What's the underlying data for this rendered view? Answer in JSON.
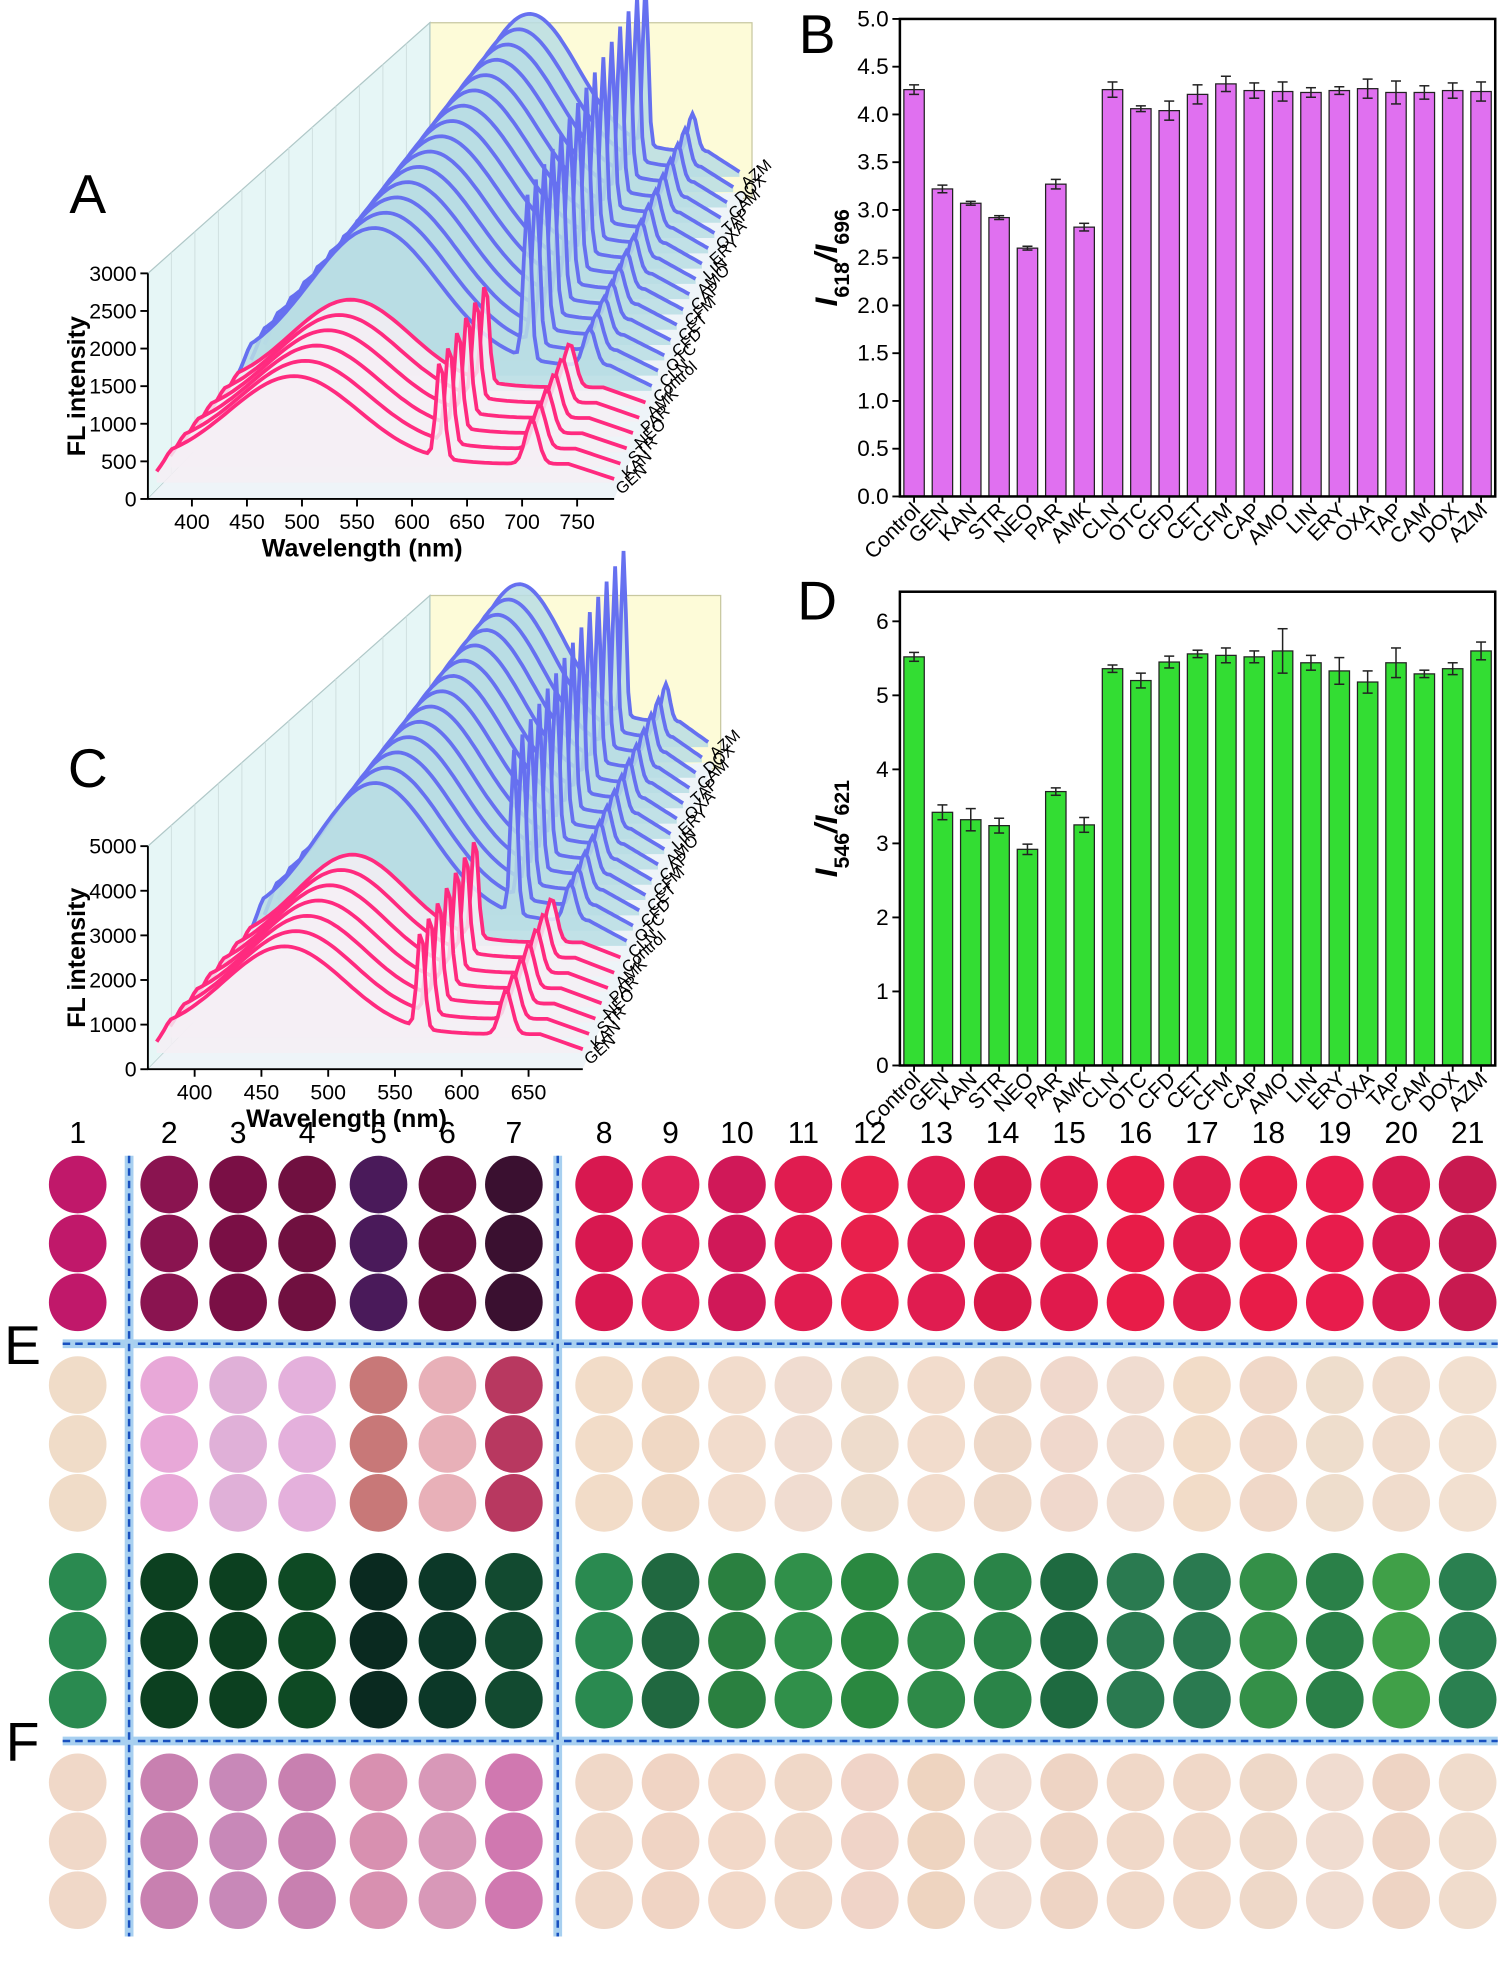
{
  "chart_data": [
    {
      "type": "waterfall",
      "panel": "A",
      "xlabel": "Wavelength (nm)",
      "ylabel": "FL intensity",
      "xlim": [
        360,
        795
      ],
      "xticks": [
        400,
        450,
        500,
        550,
        600,
        650,
        700,
        750
      ],
      "ylim": [
        0,
        3000
      ],
      "yticks": [
        0,
        500,
        1000,
        1500,
        2000,
        2500,
        3000
      ],
      "series": [
        {
          "name": "GEN",
          "color": "#ff2a7f"
        },
        {
          "name": "KAN",
          "color": "#ff2a7f"
        },
        {
          "name": "STR",
          "color": "#ff2a7f"
        },
        {
          "name": "NEO",
          "color": "#ff2a7f"
        },
        {
          "name": "PAR",
          "color": "#ff2a7f"
        },
        {
          "name": "AMK",
          "color": "#ff2a7f"
        },
        {
          "name": "Control",
          "color": "#6670f0"
        },
        {
          "name": "CLN",
          "color": "#6670f0"
        },
        {
          "name": "OTC",
          "color": "#6670f0"
        },
        {
          "name": "CFD",
          "color": "#6670f0"
        },
        {
          "name": "CET",
          "color": "#6670f0"
        },
        {
          "name": "CFM",
          "color": "#6670f0"
        },
        {
          "name": "CAP",
          "color": "#6670f0"
        },
        {
          "name": "AMO",
          "color": "#6670f0"
        },
        {
          "name": "LIN",
          "color": "#6670f0"
        },
        {
          "name": "ERY",
          "color": "#6670f0"
        },
        {
          "name": "OXA",
          "color": "#6670f0"
        },
        {
          "name": "TAP",
          "color": "#6670f0"
        },
        {
          "name": "CAM",
          "color": "#6670f0"
        },
        {
          "name": "DOX",
          "color": "#6670f0"
        },
        {
          "name": "AZM",
          "color": "#6670f0"
        }
      ]
    },
    {
      "type": "bar",
      "panel": "B",
      "color": "#e070f0",
      "ylabel": [
        {
          "text": "I"
        },
        {
          "sub": "618"
        },
        {
          "text": "/I"
        },
        {
          "sub": "696"
        }
      ],
      "categories": [
        "Control",
        "GEN",
        "KAN",
        "STR",
        "NEO",
        "PAR",
        "AMK",
        "CLN",
        "OTC",
        "CFD",
        "CET",
        "CFM",
        "CAP",
        "AMO",
        "LIN",
        "ERY",
        "OXA",
        "TAP",
        "CAM",
        "DOX",
        "AZM"
      ],
      "values": [
        4.26,
        3.22,
        3.07,
        2.92,
        2.6,
        3.27,
        2.82,
        4.26,
        4.06,
        4.04,
        4.21,
        4.32,
        4.25,
        4.24,
        4.23,
        4.25,
        4.27,
        4.23,
        4.23,
        4.25,
        4.24
      ],
      "errors": [
        0.05,
        0.04,
        0.02,
        0.02,
        0.02,
        0.05,
        0.04,
        0.08,
        0.03,
        0.1,
        0.1,
        0.08,
        0.08,
        0.1,
        0.05,
        0.04,
        0.1,
        0.12,
        0.07,
        0.08,
        0.1
      ],
      "ylim": [
        0,
        5
      ],
      "yticks": [
        {
          "value": 0,
          "label": "0.0"
        },
        0.5,
        {
          "value": 1,
          "label": "1.0"
        },
        1.5,
        {
          "value": 2,
          "label": "2.0"
        },
        2.5,
        {
          "value": 3,
          "label": "3.0"
        },
        3.5,
        {
          "value": 4,
          "label": "4.0"
        },
        4.5,
        {
          "value": 5,
          "label": "5.0"
        }
      ]
    },
    {
      "type": "waterfall",
      "panel": "C",
      "xlabel": "Wavelength (nm)",
      "ylabel": "FL intensity",
      "xlim": [
        365,
        700
      ],
      "xticks": [
        400,
        450,
        500,
        550,
        600,
        650
      ],
      "ylim": [
        0,
        5000
      ],
      "yticks": [
        0,
        1000,
        2000,
        3000,
        4000,
        5000
      ],
      "series": [
        {
          "name": "GEN",
          "color": "#ff2a7f"
        },
        {
          "name": "KAN",
          "color": "#ff2a7f"
        },
        {
          "name": "STR",
          "color": "#ff2a7f"
        },
        {
          "name": "NEO",
          "color": "#ff2a7f"
        },
        {
          "name": "PAR",
          "color": "#ff2a7f"
        },
        {
          "name": "AMK",
          "color": "#ff2a7f"
        },
        {
          "name": "Control",
          "color": "#ff2a7f"
        },
        {
          "name": "CLN",
          "color": "#6670f0"
        },
        {
          "name": "OTC",
          "color": "#6670f0"
        },
        {
          "name": "CFD",
          "color": "#6670f0"
        },
        {
          "name": "CET",
          "color": "#6670f0"
        },
        {
          "name": "CFM",
          "color": "#6670f0"
        },
        {
          "name": "CAP",
          "color": "#6670f0"
        },
        {
          "name": "AMO",
          "color": "#6670f0"
        },
        {
          "name": "LIN",
          "color": "#6670f0"
        },
        {
          "name": "ERY",
          "color": "#6670f0"
        },
        {
          "name": "OXA",
          "color": "#6670f0"
        },
        {
          "name": "TAP",
          "color": "#6670f0"
        },
        {
          "name": "CAM",
          "color": "#6670f0"
        },
        {
          "name": "DOX",
          "color": "#6670f0"
        },
        {
          "name": "AZM",
          "color": "#6670f0"
        }
      ]
    },
    {
      "type": "bar",
      "panel": "D",
      "color": "#33dd33",
      "ylabel": [
        {
          "text": "I"
        },
        {
          "sub": "546"
        },
        {
          "text": "/I"
        },
        {
          "sub": "621"
        }
      ],
      "categories": [
        "Control",
        "GEN",
        "KAN",
        "STR",
        "NEO",
        "PAR",
        "AMK",
        "CLN",
        "OTC",
        "CFD",
        "CET",
        "CFM",
        "CAP",
        "AMO",
        "LIN",
        "ERY",
        "OXA",
        "TAP",
        "CAM",
        "DOX",
        "AZM"
      ],
      "values": [
        5.52,
        3.42,
        3.32,
        3.24,
        2.92,
        3.7,
        3.25,
        5.36,
        5.2,
        5.45,
        5.56,
        5.54,
        5.52,
        5.6,
        5.44,
        5.33,
        5.18,
        5.44,
        5.29,
        5.36,
        5.6
      ],
      "errors": [
        0.06,
        0.1,
        0.15,
        0.1,
        0.07,
        0.05,
        0.1,
        0.05,
        0.1,
        0.08,
        0.05,
        0.1,
        0.08,
        0.3,
        0.1,
        0.18,
        0.15,
        0.2,
        0.05,
        0.08,
        0.12
      ],
      "ylim": [
        0,
        6.4
      ],
      "yticks": [
        0,
        1,
        2,
        3,
        4,
        5,
        6
      ]
    }
  ],
  "wells": {
    "columns": [
      1,
      2,
      3,
      4,
      5,
      6,
      7,
      8,
      9,
      10,
      11,
      12,
      13,
      14,
      15,
      16,
      17,
      18,
      19,
      20,
      21
    ],
    "panels": [
      {
        "label": "E",
        "bands": [
          [
            "#c0186a",
            "#8a1450",
            "#7a0f45",
            "#701040",
            "#4a1a5a",
            "#6a1040",
            "#3a1030",
            "#d81850",
            "#e0205a",
            "#d01858",
            "#e01c50",
            "#e8204c",
            "#e01c50",
            "#d81848",
            "#e01a4c",
            "#e81c48",
            "#e01c4c",
            "#e81c48",
            "#e81c4c",
            "#d81a50",
            "#c81a50"
          ],
          [
            "#f0dcc8",
            "#e8a8d8",
            "#e0b0d8",
            "#e4b0dc",
            "#c87878",
            "#e8b0b8",
            "#b83860",
            "#f2dcc8",
            "#f0d8c4",
            "#f2dccc",
            "#f0dcd0",
            "#eedccc",
            "#f2dccc",
            "#eed8c8",
            "#f0d8cc",
            "#f0dcd0",
            "#f2dcc8",
            "#f0d8c8",
            "#eeddcc",
            "#f0dccc",
            "#f2e0d0"
          ]
        ]
      },
      {
        "label": "F",
        "bands": [
          [
            "#2a8a50",
            "#0c4020",
            "#0c4020",
            "#0e4a24",
            "#0a2a20",
            "#0c3828",
            "#124a30",
            "#2a8a50",
            "#206840",
            "#2a8040",
            "#30904a",
            "#2a8840",
            "#2e8a48",
            "#2a8448",
            "#1e6a40",
            "#2a7a50",
            "#2a7a50",
            "#349048",
            "#2a8048",
            "#40a048",
            "#2a8050"
          ],
          [
            "#f0d8c8",
            "#c880b0",
            "#c888b8",
            "#c880b0",
            "#d890b0",
            "#d898b8",
            "#d078b0",
            "#f0d8c8",
            "#f0d4c4",
            "#f2d8c8",
            "#f0d8c8",
            "#f0d4c8",
            "#eed4c0",
            "#f0dcd0",
            "#eed4c4",
            "#f0d8c8",
            "#f0d8c8",
            "#eed8c8",
            "#f0dcd0",
            "#eed4c4",
            "#f0dccc"
          ]
        ]
      }
    ]
  }
}
